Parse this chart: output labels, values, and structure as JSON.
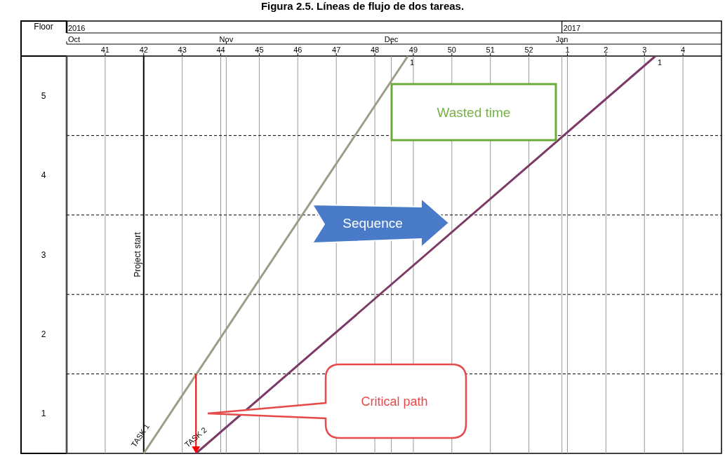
{
  "chart_data": {
    "type": "line",
    "title": "Figura 2.5. Líneas de flujo de dos tareas.",
    "ylabel": "Floor",
    "series": [
      {
        "name": "TASK 1",
        "color": "#9c9e83",
        "x": [
          "2016-10-17",
          "2016-12-04"
        ],
        "values": [
          0,
          5
        ]
      },
      {
        "name": "TASK 2",
        "color": "#7b3a66",
        "x": [
          "2016-10-26T12:00",
          "2017-01-18"
        ],
        "values": [
          0,
          5
        ]
      }
    ],
    "xlim": [
      "2016-10-03",
      "2017-01-30"
    ],
    "xticks": [
      {
        "value": "2016-10-10",
        "label": "41"
      },
      {
        "value": "2016-10-17",
        "label": "42"
      },
      {
        "value": "2016-10-24",
        "label": "43"
      },
      {
        "value": "2016-10-31",
        "label": "44"
      },
      {
        "value": "2016-11-07",
        "label": "45"
      },
      {
        "value": "2016-11-14",
        "label": "46"
      },
      {
        "value": "2016-11-21",
        "label": "47"
      },
      {
        "value": "2016-11-28",
        "label": "48"
      },
      {
        "value": "2016-12-05",
        "label": "49"
      },
      {
        "value": "2016-12-12",
        "label": "50"
      },
      {
        "value": "2016-12-19",
        "label": "51"
      },
      {
        "value": "2016-12-26",
        "label": "52"
      },
      {
        "value": "2017-01-02",
        "label": "1"
      },
      {
        "value": "2017-01-09",
        "label": "2"
      },
      {
        "value": "2017-01-16",
        "label": "3"
      },
      {
        "value": "2017-01-23",
        "label": "4"
      }
    ],
    "x2lim": [
      "2016-10-03",
      "2017-01-30"
    ],
    "x2ticks": [
      {
        "value": "2016-10-03",
        "label": "Oct"
      },
      {
        "value": "2016-11-01",
        "label": "Nov"
      },
      {
        "value": "2016-12-01",
        "label": "Dec"
      },
      {
        "value": "2017-01-01",
        "label": "Jan"
      }
    ],
    "ylim": [
      0,
      5
    ],
    "yticks": [
      {
        "value": 0.5,
        "label": "1"
      },
      {
        "value": 1.5,
        "label": "2"
      },
      {
        "value": 2.5,
        "label": "3"
      },
      {
        "value": 3.5,
        "label": "4"
      },
      {
        "value": 4.5,
        "label": "5"
      }
    ],
    "grid": "x",
    "marker": "none",
    "line_style": "solid",
    "ref_lines": [
      {
        "axis": "x",
        "value": "2016-10-17",
        "label": "Project start",
        "color": "#000000",
        "line_style": "solid"
      },
      {
        "axis": "x",
        "value": "2016-10-03",
        "label": "2016",
        "color": "#000000",
        "line_style": "solid"
      },
      {
        "axis": "x",
        "value": "2017-01-01",
        "label": "2017",
        "color": "#000000",
        "line_style": "solid"
      },
      {
        "axis": "y",
        "value": 1,
        "label": null,
        "color": "#000000",
        "line_style": "dashed"
      },
      {
        "axis": "y",
        "value": 2,
        "label": null,
        "color": "#000000",
        "line_style": "dashed"
      },
      {
        "axis": "y",
        "value": 3,
        "label": null,
        "color": "#000000",
        "line_style": "dashed"
      },
      {
        "axis": "y",
        "value": 4,
        "label": null,
        "color": "#000000",
        "line_style": "dashed"
      }
    ],
    "annotations": [
      {
        "text": "1",
        "x": "2016-12-04",
        "y": 5
      },
      {
        "text": "1",
        "x": "2017-01-18",
        "y": 5
      },
      "Wasted time",
      "Sequence",
      "Critical path"
    ]
  }
}
